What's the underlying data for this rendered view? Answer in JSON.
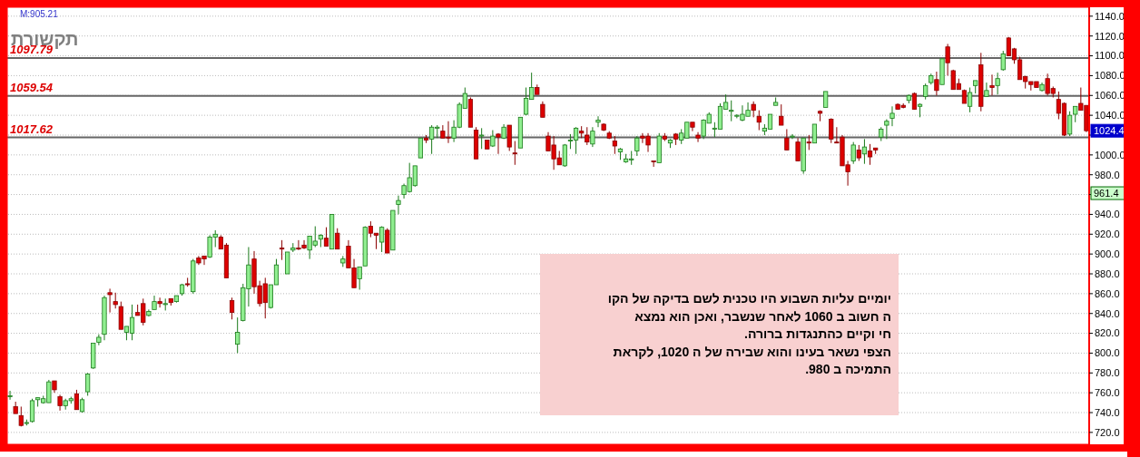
{
  "chart_data": {
    "type": "candlestick",
    "title": "תקשורת",
    "categories": [
      null,
      null,
      null,
      null,
      null,
      null,
      null,
      null,
      null,
      null,
      null,
      null,
      null,
      null,
      null,
      null,
      null,
      null,
      null,
      null,
      null,
      null,
      null,
      null,
      null,
      null,
      null,
      null,
      null,
      null,
      null,
      null,
      null,
      null,
      null,
      null,
      null,
      null,
      null,
      null,
      null,
      null,
      null,
      null,
      null,
      null,
      null,
      null,
      null,
      null,
      null,
      null,
      null,
      null,
      null,
      null,
      null,
      null,
      null,
      null,
      null,
      null,
      null,
      null,
      null,
      null,
      null,
      null,
      null,
      null,
      null,
      null,
      null,
      null,
      null,
      null,
      null,
      null,
      null,
      null,
      null,
      null,
      null,
      null,
      null,
      null,
      null,
      null,
      null,
      null,
      null,
      null,
      null,
      null,
      null,
      null,
      null,
      null,
      null,
      null,
      null,
      null,
      null,
      null,
      null,
      null,
      null,
      null,
      null,
      null,
      null,
      null,
      null,
      null,
      null,
      null,
      null,
      null,
      null,
      null,
      null,
      null,
      null,
      null,
      null,
      null,
      null,
      null,
      null,
      null,
      null,
      null,
      null,
      null,
      null,
      null,
      null,
      null,
      null,
      null,
      null,
      null,
      null,
      null,
      null,
      null,
      null,
      null,
      null,
      null,
      null,
      null,
      null,
      null,
      null,
      null,
      null,
      null,
      null,
      null,
      null,
      null,
      null,
      null,
      null,
      null,
      null,
      null,
      null,
      null,
      null,
      null,
      null,
      null,
      null,
      null,
      null,
      null,
      null,
      null,
      null,
      null,
      null,
      null,
      null,
      null,
      null,
      null,
      null,
      null,
      null,
      null,
      null,
      null,
      null
    ],
    "ohlc": [
      [
        757,
        762,
        753,
        757
      ],
      [
        746,
        751,
        739,
        739
      ],
      [
        737,
        746,
        726,
        727
      ],
      [
        729,
        733,
        727,
        730
      ],
      [
        731,
        754,
        730,
        752
      ],
      [
        753,
        755,
        746,
        755
      ],
      [
        750,
        757,
        749,
        754
      ],
      [
        750,
        773,
        750,
        771
      ],
      [
        772,
        772,
        760,
        763
      ],
      [
        756,
        758,
        742,
        747
      ],
      [
        747,
        754,
        743,
        752
      ],
      [
        752,
        756,
        749,
        754
      ],
      [
        759,
        763,
        743,
        743
      ],
      [
        741,
        755,
        740,
        753
      ],
      [
        761,
        780,
        757,
        779
      ],
      [
        785,
        810,
        784,
        810
      ],
      [
        811,
        819,
        808,
        816
      ],
      [
        819,
        858,
        813,
        856
      ],
      [
        861,
        865,
        841,
        859
      ],
      [
        852,
        861,
        845,
        849
      ],
      [
        847,
        852,
        824,
        824
      ],
      [
        821,
        827,
        813,
        827
      ],
      [
        820,
        849,
        813,
        836
      ],
      [
        841,
        849,
        838,
        838
      ],
      [
        850,
        855,
        828,
        831
      ],
      [
        838,
        844,
        837,
        842
      ],
      [
        844,
        858,
        844,
        852
      ],
      [
        852,
        856,
        846,
        850
      ],
      [
        849,
        855,
        843,
        850
      ],
      [
        855,
        855,
        848,
        851
      ],
      [
        852,
        858,
        851,
        858
      ],
      [
        860,
        870,
        858,
        869
      ],
      [
        870,
        876,
        867,
        869
      ],
      [
        862,
        895,
        860,
        893
      ],
      [
        896,
        898,
        889,
        891
      ],
      [
        898,
        898,
        889,
        895
      ],
      [
        897,
        919,
        896,
        917
      ],
      [
        917,
        924,
        907,
        920
      ],
      [
        917,
        919,
        905,
        905
      ],
      [
        909,
        911,
        876,
        876
      ],
      [
        853,
        856,
        834,
        841
      ],
      [
        809,
        836,
        800,
        821
      ],
      [
        833,
        870,
        832,
        866
      ],
      [
        865,
        907,
        847,
        889
      ],
      [
        895,
        903,
        860,
        867
      ],
      [
        868,
        873,
        847,
        850
      ],
      [
        870,
        876,
        835,
        851
      ],
      [
        846,
        869,
        845,
        869
      ],
      [
        869,
        895,
        869,
        889
      ],
      [
        906,
        914,
        894,
        905
      ],
      [
        880,
        902,
        880,
        902
      ],
      [
        904,
        911,
        902,
        906
      ],
      [
        906,
        914,
        904,
        905
      ],
      [
        909,
        914,
        905,
        906
      ],
      [
        904,
        918,
        895,
        918
      ],
      [
        909,
        928,
        907,
        913
      ],
      [
        915,
        920,
        907,
        919
      ],
      [
        916,
        927,
        908,
        908
      ],
      [
        905,
        940,
        905,
        940
      ],
      [
        921,
        926,
        905,
        905
      ],
      [
        891,
        898,
        887,
        895
      ],
      [
        908,
        914,
        886,
        886
      ],
      [
        886,
        895,
        866,
        866
      ],
      [
        875,
        887,
        864,
        887
      ],
      [
        888,
        928,
        888,
        927
      ],
      [
        928,
        933,
        917,
        921
      ],
      [
        921,
        921,
        905,
        919
      ],
      [
        912,
        928,
        902,
        927
      ],
      [
        924,
        926,
        901,
        901
      ],
      [
        904,
        944,
        904,
        944
      ],
      [
        950,
        959,
        940,
        954
      ],
      [
        960,
        971,
        956,
        969
      ],
      [
        963,
        992,
        962,
        977
      ],
      [
        969,
        989,
        968,
        989
      ],
      [
        997,
        1017,
        997,
        1017
      ],
      [
        1017,
        1020,
        1012,
        1015
      ],
      [
        1016,
        1030,
        1001,
        1028
      ],
      [
        1027,
        1030,
        1017,
        1028
      ],
      [
        1024,
        1030,
        1017,
        1017
      ],
      [
        1018,
        1034,
        1012,
        1017
      ],
      [
        1017,
        1035,
        1013,
        1028
      ],
      [
        1028,
        1053,
        1027,
        1051
      ],
      [
        1047,
        1068,
        1047,
        1062
      ],
      [
        1056,
        1058,
        1028,
        1028
      ],
      [
        1025,
        1028,
        996,
        996
      ],
      [
        1019,
        1027,
        1006,
        1020
      ],
      [
        1015,
        1015,
        1006,
        1006
      ],
      [
        1009,
        1025,
        1008,
        1019
      ],
      [
        1021,
        1022,
        1001,
        1018
      ],
      [
        1017,
        1031,
        1016,
        1028
      ],
      [
        1030,
        1030,
        1004,
        1008
      ],
      [
        1002,
        1014,
        990,
        1001
      ],
      [
        1007,
        1038,
        1007,
        1038
      ],
      [
        1041,
        1068,
        1040,
        1057
      ],
      [
        1056,
        1083,
        1056,
        1068
      ],
      [
        1068,
        1071,
        1061,
        1061
      ],
      [
        1051,
        1054,
        1038,
        1038
      ],
      [
        1019,
        1023,
        1004,
        1004
      ],
      [
        1010,
        1019,
        985,
        996
      ],
      [
        997,
        1004,
        990,
        990
      ],
      [
        989,
        1011,
        988,
        1010
      ],
      [
        1014,
        1021,
        1006,
        1015
      ],
      [
        1015,
        1028,
        1001,
        1027
      ],
      [
        1024,
        1029,
        1017,
        1022
      ],
      [
        1020,
        1028,
        1010,
        1013
      ],
      [
        1011,
        1028,
        1008,
        1024
      ],
      [
        1033,
        1039,
        1028,
        1035
      ],
      [
        1031,
        1032,
        1024,
        1025
      ],
      [
        1022,
        1024,
        1016,
        1017
      ],
      [
        1014,
        1019,
        1001,
        1009
      ],
      [
        1003,
        1007,
        995,
        1006
      ],
      [
        993,
        1001,
        992,
        996
      ],
      [
        995,
        1004,
        990,
        996
      ],
      [
        1004,
        1019,
        999,
        1017
      ],
      [
        1019,
        1022,
        1012,
        1017
      ],
      [
        1019,
        1022,
        1003,
        1010
      ],
      [
        994,
        994,
        988,
        993
      ],
      [
        992,
        1022,
        992,
        1019
      ],
      [
        1019,
        1022,
        1014,
        1016
      ],
      [
        1012,
        1016,
        1007,
        1015
      ],
      [
        1021,
        1022,
        1010,
        1016
      ],
      [
        1015,
        1026,
        1011,
        1022
      ],
      [
        1017,
        1033,
        1017,
        1033
      ],
      [
        1033,
        1033,
        1024,
        1028
      ],
      [
        1020,
        1023,
        1013,
        1017
      ],
      [
        1019,
        1036,
        1016,
        1035
      ],
      [
        1032,
        1043,
        1032,
        1041
      ],
      [
        1026,
        1033,
        1018,
        1027
      ],
      [
        1026,
        1052,
        1026,
        1049
      ],
      [
        1046,
        1061,
        1046,
        1053
      ],
      [
        1044,
        1055,
        1034,
        1045
      ],
      [
        1039,
        1041,
        1037,
        1040
      ],
      [
        1035,
        1050,
        1034,
        1041
      ],
      [
        1039,
        1053,
        1039,
        1045
      ],
      [
        1051,
        1054,
        1038,
        1045
      ],
      [
        1039,
        1045,
        1025,
        1033
      ],
      [
        1024,
        1031,
        1020,
        1027
      ],
      [
        1026,
        1041,
        1026,
        1041
      ],
      [
        1050,
        1058,
        1050,
        1053
      ],
      [
        1039,
        1051,
        1030,
        1030
      ],
      [
        1017,
        1026,
        1005,
        1005
      ],
      [
        1018,
        1021,
        1016,
        1019
      ],
      [
        1013,
        1017,
        994,
        994
      ],
      [
        984,
        1017,
        981,
        1017
      ],
      [
        1013,
        1020,
        1005,
        1012
      ],
      [
        1012,
        1031,
        1012,
        1031
      ],
      [
        1044,
        1045,
        1034,
        1042
      ],
      [
        1048,
        1064,
        1048,
        1064
      ],
      [
        1036,
        1037,
        1012,
        1016
      ],
      [
        1013,
        1028,
        1012,
        1012
      ],
      [
        1018,
        1020,
        989,
        989
      ],
      [
        990,
        994,
        969,
        983
      ],
      [
        994,
        1013,
        991,
        1010
      ],
      [
        1005,
        1010,
        994,
        997
      ],
      [
        1001,
        1016,
        991,
        1008
      ],
      [
        1004,
        1011,
        990,
        998
      ],
      [
        1007,
        1007,
        1001,
        1005
      ],
      [
        1018,
        1028,
        1014,
        1026
      ],
      [
        1030,
        1036,
        1016,
        1034
      ],
      [
        1037,
        1049,
        1029,
        1042
      ],
      [
        1051,
        1052,
        1046,
        1046
      ],
      [
        1050,
        1052,
        1047,
        1048
      ],
      [
        1055,
        1061,
        1052,
        1060
      ],
      [
        1062,
        1063,
        1046,
        1046
      ],
      [
        1049,
        1052,
        1038,
        1051
      ],
      [
        1059,
        1072,
        1056,
        1070
      ],
      [
        1073,
        1082,
        1071,
        1080
      ],
      [
        1076,
        1084,
        1060,
        1065
      ],
      [
        1071,
        1097,
        1071,
        1097
      ],
      [
        1109,
        1112,
        1080,
        1093
      ],
      [
        1085,
        1086,
        1066,
        1066
      ],
      [
        1072,
        1077,
        1066,
        1066
      ],
      [
        1065,
        1066,
        1052,
        1052
      ],
      [
        1049,
        1068,
        1043,
        1063
      ],
      [
        1070,
        1075,
        1062,
        1075
      ],
      [
        1091,
        1103,
        1044,
        1049
      ],
      [
        1059,
        1073,
        1059,
        1065
      ],
      [
        1070,
        1081,
        1060,
        1068
      ],
      [
        1070,
        1083,
        1061,
        1077
      ],
      [
        1086,
        1105,
        1085,
        1102
      ],
      [
        1118,
        1119,
        1100,
        1100
      ],
      [
        1107,
        1108,
        1092,
        1096
      ],
      [
        1096,
        1099,
        1076,
        1076
      ],
      [
        1079,
        1080,
        1067,
        1074
      ],
      [
        1074,
        1074,
        1065,
        1071
      ],
      [
        1074,
        1074,
        1068,
        1068
      ],
      [
        1065,
        1073,
        1064,
        1071
      ],
      [
        1077,
        1082,
        1060,
        1062
      ],
      [
        1067,
        1069,
        1058,
        1062
      ],
      [
        1056,
        1064,
        1036,
        1042
      ],
      [
        1052,
        1053,
        1019,
        1020
      ],
      [
        1021,
        1044,
        1019,
        1040
      ],
      [
        1041,
        1049,
        1033,
        1049
      ],
      [
        1052,
        1068,
        1045,
        1045
      ],
      [
        1050,
        1050,
        1023,
        1024.4
      ]
    ],
    "ylim": [
      708,
      1149
    ],
    "yticks": [
      {
        "value": 720,
        "label": "720.0"
      },
      {
        "value": 740,
        "label": "740.0"
      },
      {
        "value": 760,
        "label": "760.0"
      },
      {
        "value": 780,
        "label": "780.0"
      },
      {
        "value": 800,
        "label": "800.0"
      },
      {
        "value": 820,
        "label": "820.0"
      },
      {
        "value": 840,
        "label": "840.0"
      },
      {
        "value": 860,
        "label": "860.0"
      },
      {
        "value": 880,
        "label": "880.0"
      },
      {
        "value": 900,
        "label": "900.0"
      },
      {
        "value": 920,
        "label": "920.0"
      },
      {
        "value": 940,
        "label": "940.0"
      },
      {
        "value": 960,
        "label": null
      },
      {
        "value": 980,
        "label": "980.0"
      },
      {
        "value": 1000,
        "label": "1000.0"
      },
      {
        "value": 1020,
        "label": null
      },
      {
        "value": 1040,
        "label": "1040.0"
      },
      {
        "value": 1060,
        "label": "1060.0"
      },
      {
        "value": 1080,
        "label": "1080.0"
      },
      {
        "value": 1100,
        "label": "1100.0"
      },
      {
        "value": 1120,
        "label": "1120.0"
      },
      {
        "value": 1140,
        "label": "1140.0"
      }
    ],
    "grid": "y",
    "ref_lines": [
      {
        "axis": "y",
        "value": 1097.79,
        "label": "1097.79",
        "color": "#666666"
      },
      {
        "axis": "y",
        "value": 1059.54,
        "label": "1059.54",
        "color": "#666666"
      },
      {
        "axis": "y",
        "value": 1017.62,
        "label": "1017.62",
        "color": "#666666"
      }
    ],
    "annotations": [
      "M:905.21",
      "יומיים  עליות השבוע היו טכנית לשם בדיקה של הקו\nה חשוב ב 1060 לאחר שנשבר, ואכן הוא נמצא\nחי וקיים כהתנגדות ברורה.\nהצפי נשאר בעינו והוא  שבירה של ה 1020, לקראת\nהתמיכה ב 980.",
      "1024.4",
      "961.4"
    ]
  }
}
